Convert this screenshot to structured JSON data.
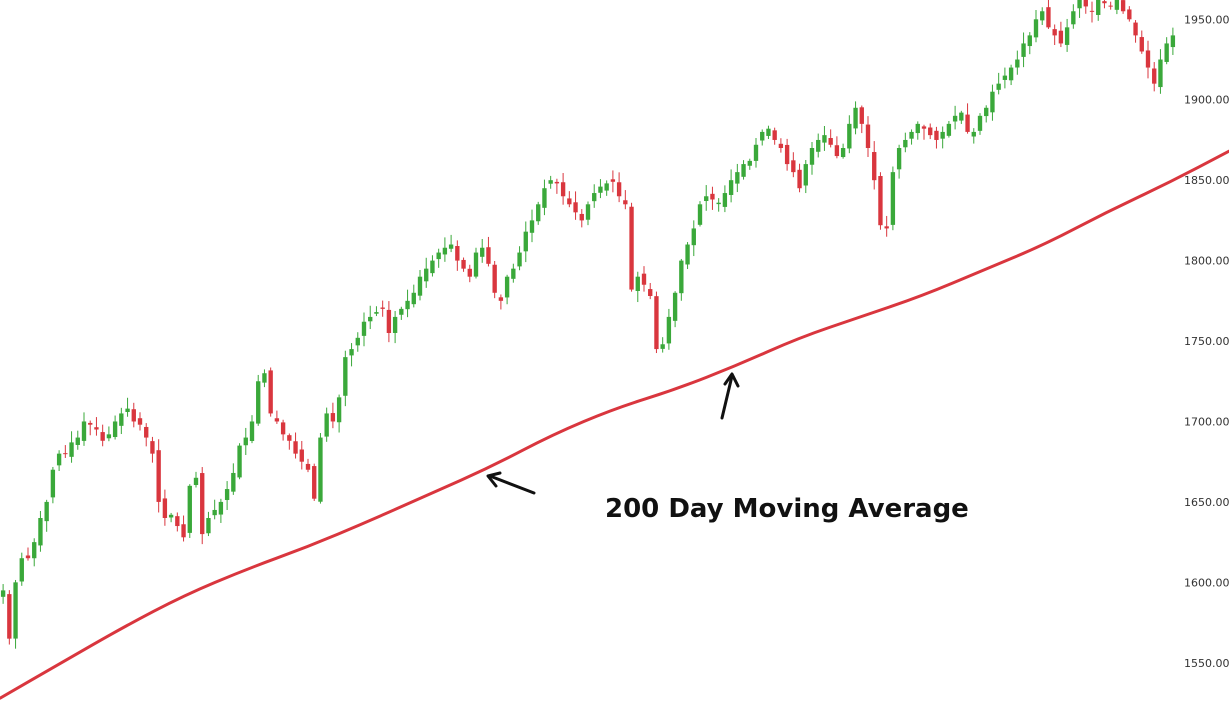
{
  "chart_data": {
    "type": "candlestick",
    "title": "",
    "xlabel": "",
    "ylabel": "",
    "ylim": [
      1525,
      1962
    ],
    "y_ticks": [
      "1950.00",
      "1900.00",
      "1850.00",
      "1800.00",
      "1750.00",
      "1700.00",
      "1650.00",
      "1600.00",
      "1550.00"
    ],
    "grid": false,
    "colors": {
      "up": "#3aa83a",
      "down": "#d9363e",
      "moving_average": "#d9363e",
      "axis_text": "#333333",
      "annotation": "#111111"
    },
    "candles_approx_close": [
      1595,
      1565,
      1600,
      1615,
      1615,
      1625,
      1640,
      1650,
      1670,
      1680,
      1680,
      1687,
      1690,
      1700,
      1698,
      1695,
      1688,
      1692,
      1700,
      1705,
      1708,
      1700,
      1698,
      1690,
      1680,
      1650,
      1640,
      1642,
      1635,
      1628,
      1660,
      1665,
      1630,
      1640,
      1645,
      1650,
      1658,
      1668,
      1685,
      1690,
      1700,
      1725,
      1730,
      1705,
      1700,
      1692,
      1688,
      1680,
      1675,
      1670,
      1652,
      1690,
      1705,
      1700,
      1715,
      1740,
      1745,
      1752,
      1762,
      1765,
      1768,
      1770,
      1755,
      1765,
      1770,
      1775,
      1780,
      1790,
      1795,
      1800,
      1805,
      1808,
      1810,
      1800,
      1795,
      1790,
      1805,
      1808,
      1798,
      1780,
      1775,
      1790,
      1795,
      1805,
      1818,
      1825,
      1835,
      1845,
      1850,
      1848,
      1840,
      1835,
      1830,
      1825,
      1835,
      1842,
      1846,
      1848,
      1849,
      1840,
      1835,
      1782,
      1790,
      1785,
      1778,
      1745,
      1748,
      1765,
      1780,
      1800,
      1810,
      1820,
      1835,
      1840,
      1838,
      1836,
      1842,
      1850,
      1855,
      1860,
      1862,
      1872,
      1880,
      1882,
      1875,
      1870,
      1860,
      1855,
      1845,
      1860,
      1870,
      1875,
      1878,
      1872,
      1865,
      1870,
      1885,
      1895,
      1885,
      1870,
      1850,
      1822,
      1820,
      1855,
      1870,
      1875,
      1880,
      1885,
      1882,
      1878,
      1875,
      1880,
      1885,
      1890,
      1892,
      1880,
      1880,
      1890,
      1895,
      1905,
      1910,
      1915,
      1920,
      1925,
      1935,
      1940,
      1950,
      1955,
      1945,
      1940,
      1935,
      1945,
      1955,
      1962,
      1958,
      1955,
      1962,
      1960,
      1958,
      1962,
      1955,
      1950,
      1940,
      1930,
      1920,
      1910,
      1925,
      1935,
      1940
    ],
    "moving_average": {
      "label": "200 Day Moving Average",
      "x": [
        0,
        0.05,
        0.1,
        0.15,
        0.2,
        0.25,
        0.3,
        0.35,
        0.4,
        0.45,
        0.5,
        0.55,
        0.6,
        0.65,
        0.7,
        0.75,
        0.8,
        0.85,
        0.9,
        0.95,
        1.0
      ],
      "values": [
        1528,
        1550,
        1572,
        1592,
        1608,
        1622,
        1638,
        1655,
        1672,
        1692,
        1708,
        1720,
        1735,
        1752,
        1765,
        1778,
        1794,
        1810,
        1830,
        1848,
        1868
      ]
    },
    "annotations": [
      {
        "text": "200 Day Moving Average"
      }
    ]
  }
}
